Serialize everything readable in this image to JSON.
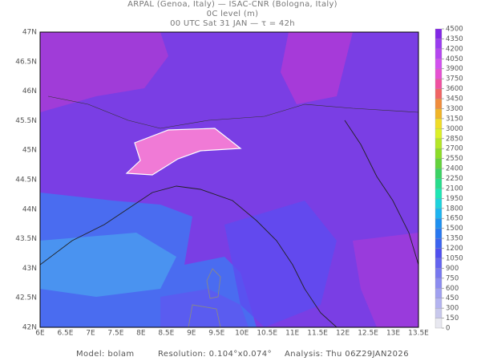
{
  "header": {
    "line1": "ARPAL (Genoa, Italy)  —  ISAC-CNR (Bologna, Italy)",
    "line2": "0C level (m)",
    "line3": "00 UTC Sat 31 JAN  —  τ = 42h"
  },
  "lon_labels": [
    "6E",
    "6.5E",
    "7E",
    "7.5E",
    "8E",
    "8.5E",
    "9E",
    "9.5E",
    "10E",
    "10.5E",
    "11E",
    "11.5E",
    "12E",
    "12.5E",
    "13E",
    "13.5E"
  ],
  "lat_labels": [
    "47N",
    "46.5N",
    "46N",
    "45.5N",
    "45N",
    "44.5N",
    "44N",
    "43.5N",
    "43N",
    "42.5N",
    "42N"
  ],
  "colorbar": {
    "labels": [
      0,
      150,
      300,
      450,
      600,
      750,
      900,
      1050,
      1200,
      1350,
      1500,
      1650,
      1800,
      1950,
      2100,
      2250,
      2400,
      2550,
      2700,
      2850,
      3000,
      3150,
      3300,
      3450,
      3600,
      3750,
      3900,
      4050,
      4200,
      4350,
      4500
    ],
    "colors": [
      "#e8e8f0",
      "#c8c8ec",
      "#b4b4f0",
      "#a0a0f0",
      "#8c8cf0",
      "#7878f0",
      "#6464f0",
      "#5050f0",
      "#3c64f0",
      "#2878f0",
      "#1e90f0",
      "#1eb4f0",
      "#1ed2dc",
      "#1ee6b4",
      "#28dc8c",
      "#3cd264",
      "#64d23c",
      "#8cdc28",
      "#b4e628",
      "#dcf028",
      "#f0dc28",
      "#f0b428",
      "#f08c3c",
      "#f06464",
      "#f050a0",
      "#e650d2",
      "#d250f0",
      "#b446f0",
      "#9a3cf0",
      "#8228e6"
    ]
  },
  "footer": {
    "model": "Model: bolam",
    "resolution": "Resolution: 0.104°x0.074°",
    "analysis": "Analysis: Thu 06Z29JAN2026"
  }
}
